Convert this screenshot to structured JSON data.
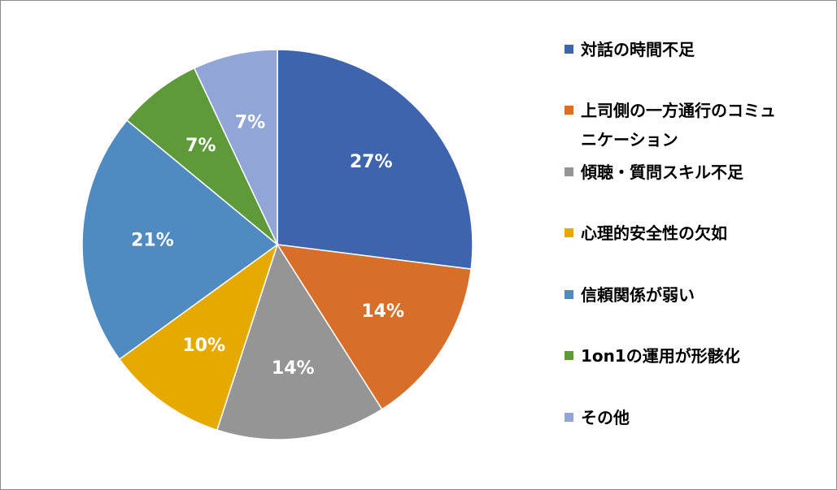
{
  "chart_data": {
    "type": "pie",
    "categories": [
      "対話の時間不足",
      "上司側の一方通行のコミュニケーション",
      "傾聴・質問スキル不足",
      "心理的安全性の欠如",
      "信頼関係が弱い",
      "1on1の運用が形骸化",
      "その他"
    ],
    "values": [
      27,
      14,
      14,
      10,
      21,
      7,
      7
    ],
    "data_labels": [
      "27%",
      "14%",
      "14%",
      "10%",
      "21%",
      "7%",
      "7%"
    ],
    "colors": [
      "#3d64ad",
      "#d76f2a",
      "#959595",
      "#e5a900",
      "#4f8ac0",
      "#5e9a3a",
      "#91a5d6"
    ],
    "title": "",
    "legend_position": "right"
  }
}
